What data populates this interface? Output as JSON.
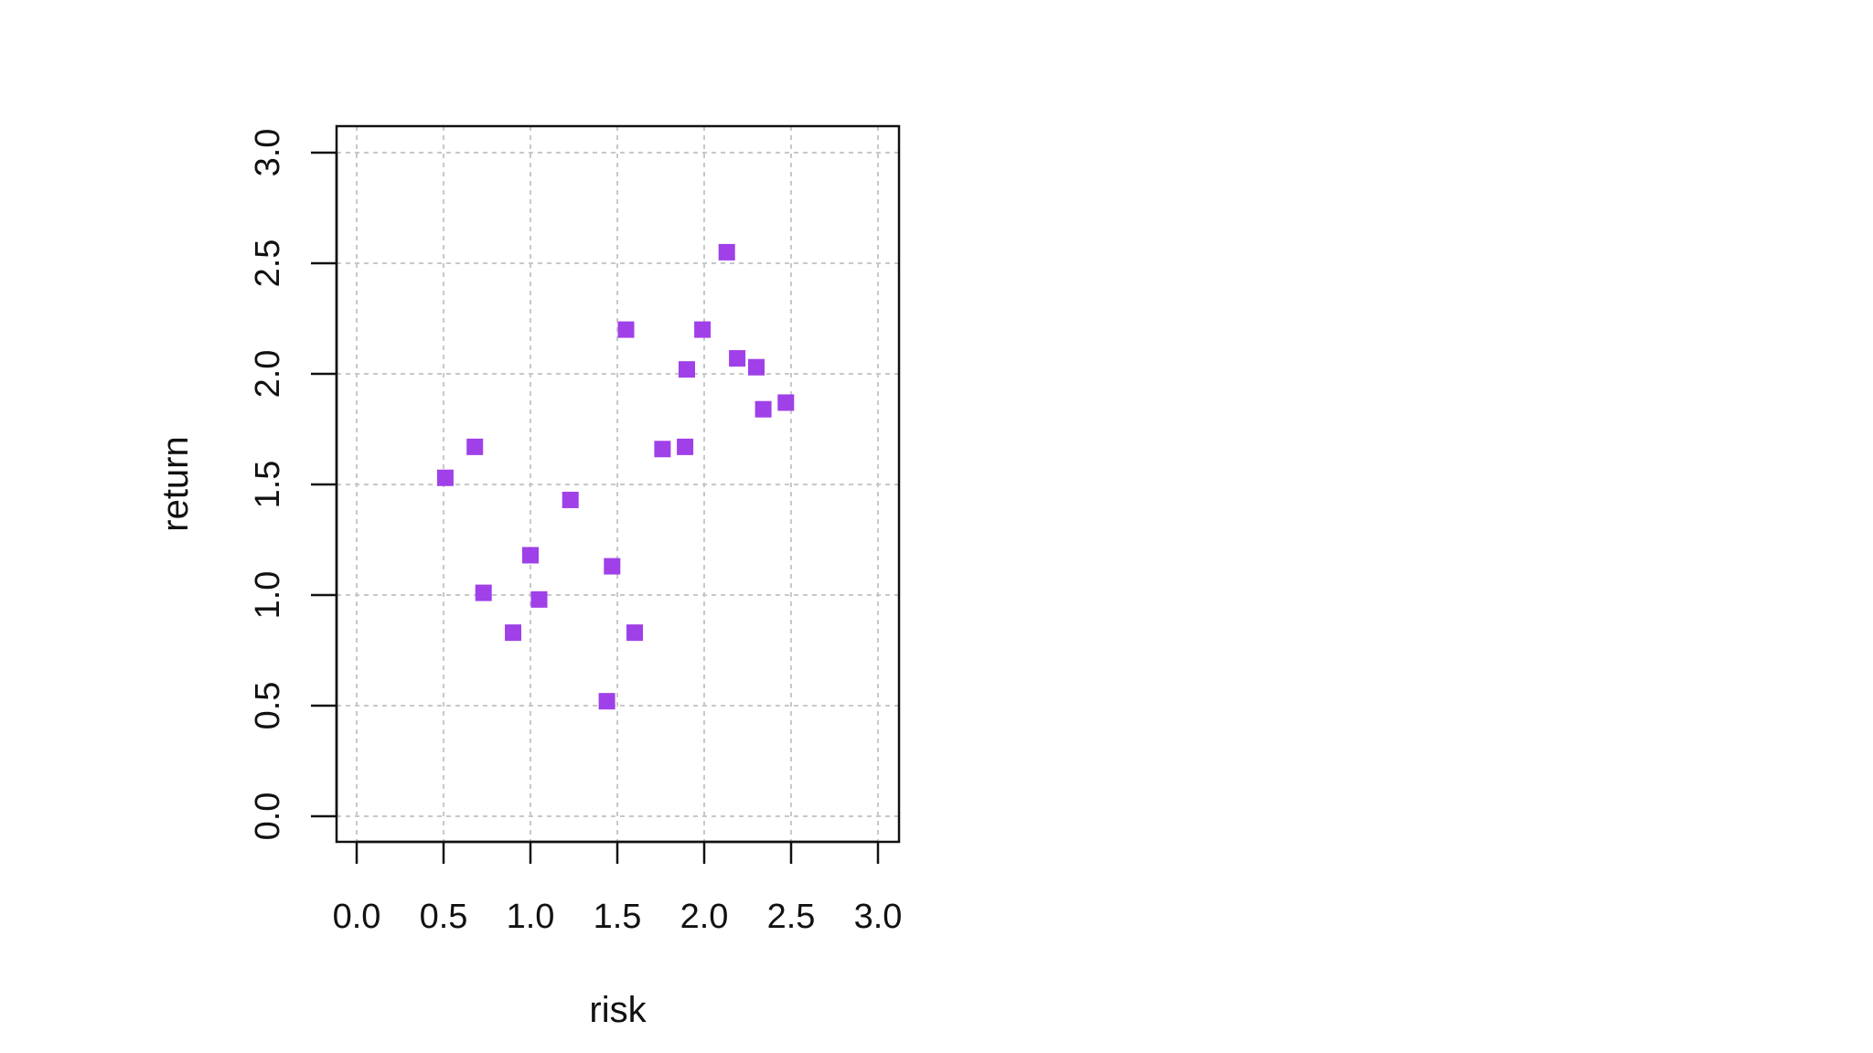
{
  "chart_data": {
    "type": "scatter",
    "xlabel": "risk",
    "ylabel": "return",
    "xlim": [
      0,
      3
    ],
    "ylim": [
      0,
      3
    ],
    "x_ticks": [
      "0.0",
      "0.5",
      "1.0",
      "1.5",
      "2.0",
      "2.5",
      "3.0"
    ],
    "y_ticks": [
      "0.0",
      "0.5",
      "1.0",
      "1.5",
      "2.0",
      "2.5",
      "3.0"
    ],
    "grid": true,
    "marker": "square",
    "color": "#a040e8",
    "points": [
      {
        "x": 0.51,
        "y": 1.53
      },
      {
        "x": 0.68,
        "y": 1.67
      },
      {
        "x": 0.73,
        "y": 1.01
      },
      {
        "x": 0.9,
        "y": 0.83
      },
      {
        "x": 1.0,
        "y": 1.18
      },
      {
        "x": 1.05,
        "y": 0.98
      },
      {
        "x": 1.23,
        "y": 1.43
      },
      {
        "x": 1.44,
        "y": 0.52
      },
      {
        "x": 1.47,
        "y": 1.13
      },
      {
        "x": 1.55,
        "y": 2.2
      },
      {
        "x": 1.6,
        "y": 0.83
      },
      {
        "x": 1.76,
        "y": 1.66
      },
      {
        "x": 1.89,
        "y": 1.67
      },
      {
        "x": 1.9,
        "y": 2.02
      },
      {
        "x": 1.99,
        "y": 2.2
      },
      {
        "x": 2.13,
        "y": 2.55
      },
      {
        "x": 2.19,
        "y": 2.07
      },
      {
        "x": 2.3,
        "y": 2.03
      },
      {
        "x": 2.34,
        "y": 1.84
      },
      {
        "x": 2.47,
        "y": 1.87
      }
    ]
  }
}
